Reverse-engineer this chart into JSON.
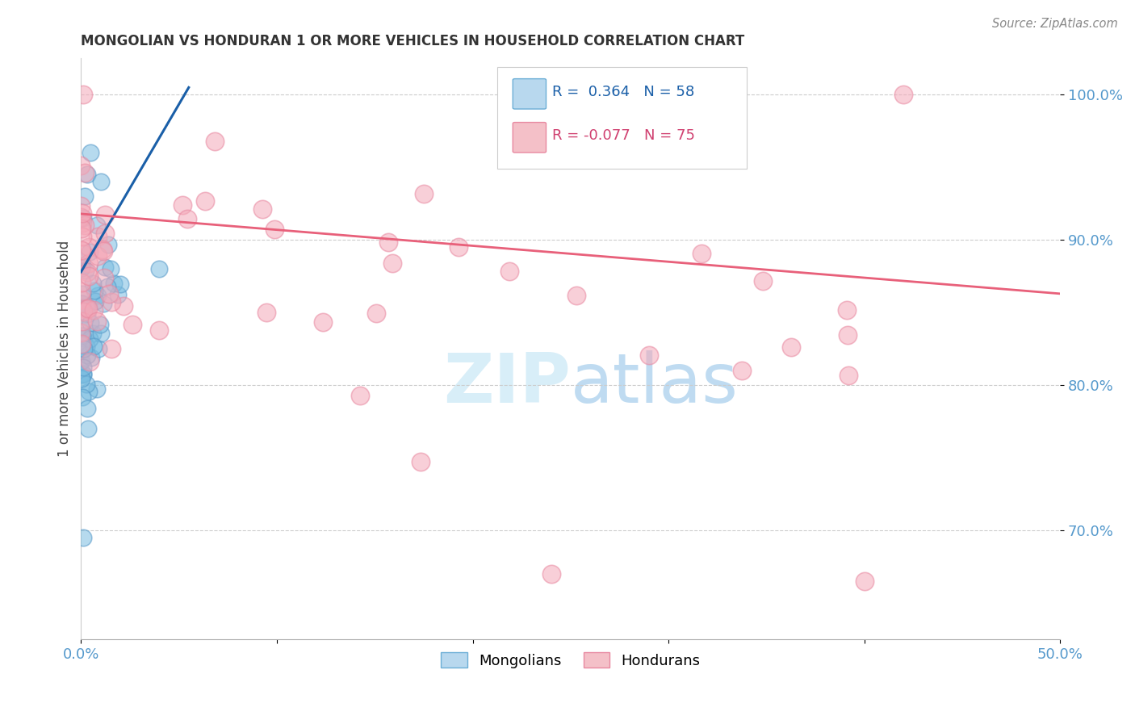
{
  "title": "MONGOLIAN VS HONDURAN 1 OR MORE VEHICLES IN HOUSEHOLD CORRELATION CHART",
  "source": "Source: ZipAtlas.com",
  "ylabel": "1 or more Vehicles in Household",
  "xmin": 0.0,
  "xmax": 0.5,
  "ymin": 0.625,
  "ymax": 1.025,
  "yticks": [
    0.7,
    0.8,
    0.9,
    1.0
  ],
  "ytick_labels": [
    "70.0%",
    "80.0%",
    "90.0%",
    "100.0%"
  ],
  "xticks": [
    0.0,
    0.1,
    0.2,
    0.3,
    0.4,
    0.5
  ],
  "xtick_labels": [
    "0.0%",
    "",
    "",
    "",
    "",
    "50.0%"
  ],
  "legend_mongolian": "Mongolians",
  "legend_honduran": "Hondurans",
  "r_mongolian": 0.364,
  "n_mongolian": 58,
  "r_honduran": -0.077,
  "n_honduran": 75,
  "mongolian_color": "#7bbde0",
  "honduran_color": "#f4a8b8",
  "mongolian_edge_color": "#5598c8",
  "honduran_edge_color": "#e888a0",
  "mongolian_line_color": "#1a5fa8",
  "honduran_line_color": "#e8607a",
  "watermark_color": "#d8eef8",
  "background_color": "#ffffff",
  "grid_color": "#cccccc",
  "tick_color": "#5599cc",
  "title_color": "#333333",
  "ylabel_color": "#444444",
  "source_color": "#888888",
  "mong_line_x0": 0.0,
  "mong_line_x1": 0.055,
  "mong_line_y0": 0.878,
  "mong_line_y1": 1.005,
  "hond_line_x0": 0.0,
  "hond_line_x1": 0.5,
  "hond_line_y0": 0.918,
  "hond_line_y1": 0.863
}
